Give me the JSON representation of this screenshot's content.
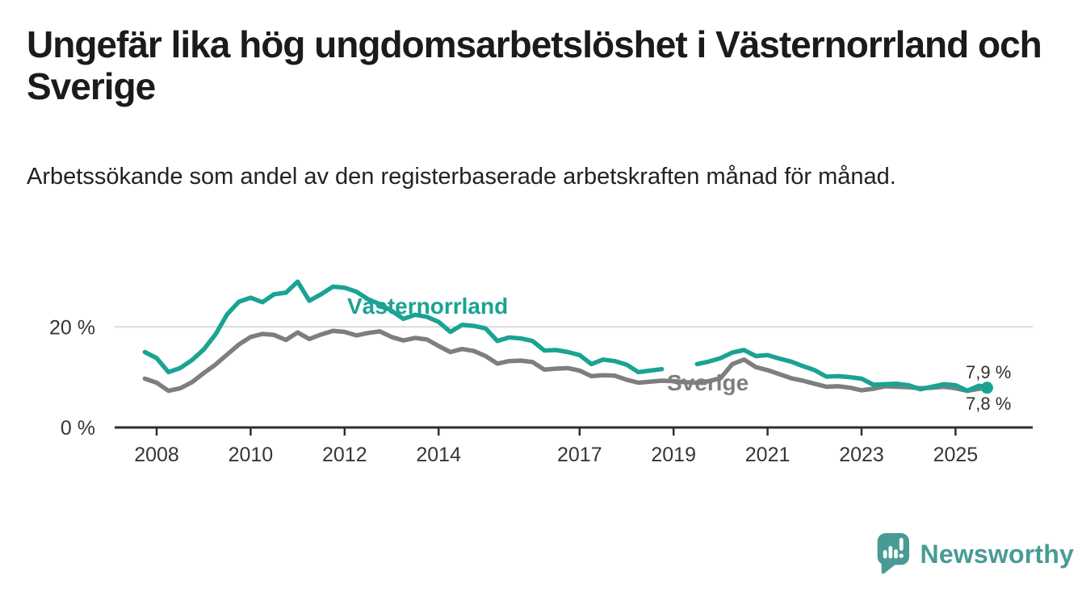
{
  "header": {
    "title": "Ungefär lika hög ungdomsarbetslöshet i Västernorrland och Sverige",
    "subtitle": "Arbetssökande som andel av den registerbaserade arbetskraften månad för månad."
  },
  "chart_data": {
    "type": "line",
    "title": "",
    "xlabel": "",
    "ylabel": "",
    "x_unit": "decimal_year",
    "grid": "horizontal-at-20-only",
    "legend_position": "inline-labels-on-chart",
    "xlim": [
      2007.75,
      2026.0
    ],
    "ylim": [
      0,
      31
    ],
    "x": [
      2007.75,
      2008,
      2008.25,
      2008.5,
      2008.75,
      2009,
      2009.25,
      2009.5,
      2009.75,
      2010,
      2010.25,
      2010.5,
      2010.75,
      2011,
      2011.25,
      2011.5,
      2011.75,
      2012,
      2012.25,
      2012.5,
      2012.75,
      2013,
      2013.25,
      2013.5,
      2013.75,
      2014,
      2014.25,
      2014.5,
      2014.75,
      2015,
      2015.25,
      2015.5,
      2015.75,
      2016,
      2016.25,
      2016.5,
      2016.75,
      2017,
      2017.25,
      2017.5,
      2017.75,
      2018,
      2018.25,
      2018.5,
      2018.75,
      2019,
      2019.25,
      2019.5,
      2019.75,
      2020,
      2020.25,
      2020.5,
      2020.75,
      2021,
      2021.25,
      2021.5,
      2021.75,
      2022,
      2022.25,
      2022.5,
      2022.75,
      2023,
      2023.25,
      2023.5,
      2023.75,
      2024,
      2024.25,
      2024.5,
      2024.75,
      2025,
      2025.25,
      2025.5,
      2025.67
    ],
    "series": [
      {
        "name": "Västernorrland",
        "color": "#1aa392",
        "end_label": "7,9 %",
        "values": [
          15.0,
          13.8,
          11.0,
          11.8,
          13.4,
          15.5,
          18.5,
          22.5,
          25.0,
          25.8,
          24.9,
          26.5,
          26.8,
          29.0,
          25.2,
          26.5,
          28.0,
          27.8,
          27.0,
          25.5,
          24.5,
          23.2,
          21.6,
          22.4,
          22.0,
          21.0,
          19.0,
          20.4,
          20.2,
          19.7,
          17.2,
          17.9,
          17.7,
          17.2,
          15.3,
          15.4,
          15.0,
          14.4,
          12.6,
          13.5,
          13.2,
          12.5,
          11.0,
          11.3,
          11.6,
          null,
          null,
          12.6,
          13.1,
          13.8,
          14.9,
          15.4,
          14.2,
          14.4,
          13.7,
          13.1,
          12.2,
          11.4,
          10.1,
          10.2,
          10.0,
          9.7,
          8.5,
          8.6,
          8.7,
          8.4,
          7.6,
          8.1,
          8.6,
          8.4,
          7.3,
          8.3,
          7.9
        ]
      },
      {
        "name": "Sverige",
        "color": "#7e7e7e",
        "end_label": "7,8 %",
        "values": [
          9.7,
          8.9,
          7.3,
          7.8,
          9.0,
          10.8,
          12.5,
          14.5,
          16.5,
          18.0,
          18.6,
          18.4,
          17.4,
          18.9,
          17.6,
          18.5,
          19.2,
          19.0,
          18.3,
          18.8,
          19.1,
          18.0,
          17.3,
          17.8,
          17.5,
          16.2,
          15.0,
          15.6,
          15.2,
          14.2,
          12.7,
          13.2,
          13.3,
          13.0,
          11.5,
          11.7,
          11.8,
          11.3,
          10.2,
          10.4,
          10.3,
          9.5,
          8.9,
          9.1,
          9.3,
          9.2,
          9.0,
          8.9,
          9.2,
          9.8,
          12.6,
          13.5,
          12.0,
          11.4,
          10.6,
          9.8,
          9.3,
          8.7,
          8.1,
          8.2,
          7.9,
          7.4,
          7.7,
          8.2,
          8.1,
          8.0,
          7.8,
          7.9,
          8.1,
          7.8,
          7.3,
          7.7,
          7.8
        ]
      }
    ],
    "x_ticks": [
      {
        "label": "2008",
        "year": 2008
      },
      {
        "label": "2010",
        "year": 2010
      },
      {
        "label": "2012",
        "year": 2012
      },
      {
        "label": "2014",
        "year": 2014
      },
      {
        "label": "2017",
        "year": 2017
      },
      {
        "label": "2019",
        "year": 2019
      },
      {
        "label": "2021",
        "year": 2021
      },
      {
        "label": "2023",
        "year": 2023
      },
      {
        "label": "2025",
        "year": 2025
      }
    ],
    "y_ticks": [
      {
        "label": "0 %",
        "value": 0
      },
      {
        "label": "20 %",
        "value": 20
      }
    ]
  },
  "colors": {
    "vasternorrland": "#1aa392",
    "sverige": "#7e7e7e",
    "gridline": "#dadada",
    "axis": "#2f2f2f",
    "tick_text": "#363636",
    "value_label_text": "#2f2f2f",
    "logo_teal": "#489b94"
  },
  "footer": {
    "brand": "Newsworthy"
  }
}
